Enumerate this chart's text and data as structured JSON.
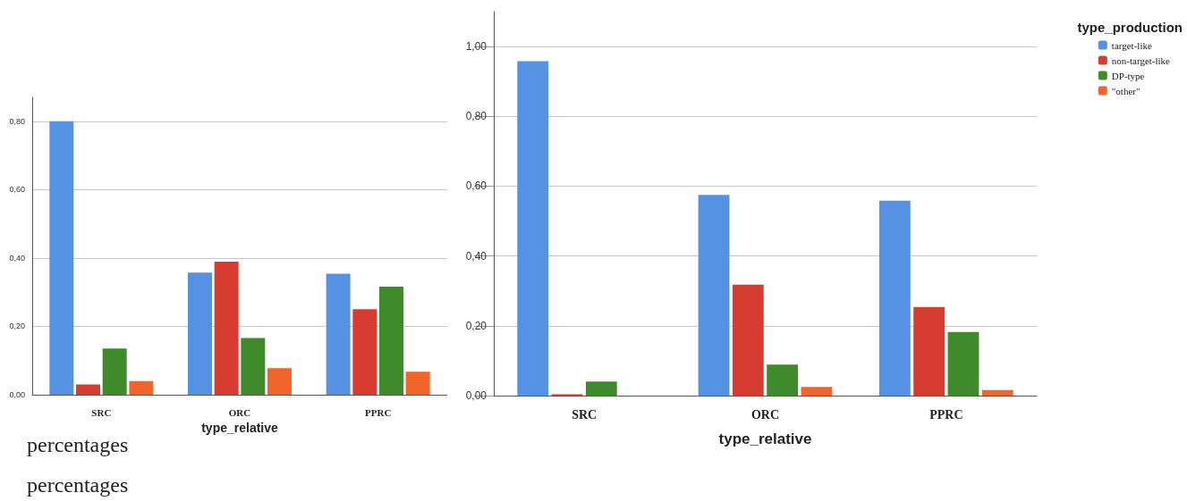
{
  "chart_data": [
    {
      "type": "bar",
      "xlabel": "type_relative",
      "categories": [
        "SRC",
        "ORC",
        "PPRC"
      ],
      "series": [
        {
          "color": "#5592e3",
          "values": [
            0.8,
            0.357,
            0.354
          ]
        },
        {
          "color": "#d63c2f",
          "values": [
            0.03,
            0.389,
            0.25
          ]
        },
        {
          "color": "#3f8a2a",
          "values": [
            0.135,
            0.166,
            0.316
          ]
        },
        {
          "color": "#f0652b",
          "values": [
            0.04,
            0.078,
            0.067
          ]
        }
      ],
      "ylim": [
        0,
        0.87
      ],
      "yticks": [
        {
          "value": 0,
          "label": "0,00"
        },
        {
          "value": 0.2,
          "label": "0,20"
        },
        {
          "value": 0.4,
          "label": "0,40"
        },
        {
          "value": 0.6,
          "label": "0,60"
        },
        {
          "value": 0.8,
          "label": "0,80"
        }
      ],
      "grid": "y",
      "legend": false,
      "annotations": [
        "percentages",
        "percentages"
      ]
    },
    {
      "type": "bar",
      "xlabel": "type_relative",
      "legend_title": "type_production",
      "categories": [
        "SRC",
        "ORC",
        "PPRC"
      ],
      "series": [
        {
          "name": "target-like",
          "color": "#5592e3",
          "values": [
            0.958,
            0.575,
            0.558
          ]
        },
        {
          "name": "non-target-like",
          "color": "#d63c2f",
          "values": [
            0.004,
            0.318,
            0.254
          ]
        },
        {
          "name": "DP-type",
          "color": "#3f8a2a",
          "values": [
            0.04,
            0.089,
            0.182
          ]
        },
        {
          "name": "\"other\"",
          "color": "#f0652b",
          "values": [
            0,
            0.025,
            0.016
          ]
        }
      ],
      "ylim": [
        0,
        1.1
      ],
      "yticks": [
        {
          "value": 0,
          "label": "0,00"
        },
        {
          "value": 0.2,
          "label": "0,20"
        },
        {
          "value": 0.4,
          "label": "0,40"
        },
        {
          "value": 0.6,
          "label": "0,60"
        },
        {
          "value": 0.8,
          "label": "0,80"
        },
        {
          "value": 1.0,
          "label": "1,00"
        }
      ],
      "grid": "y",
      "legend": "top right"
    }
  ]
}
